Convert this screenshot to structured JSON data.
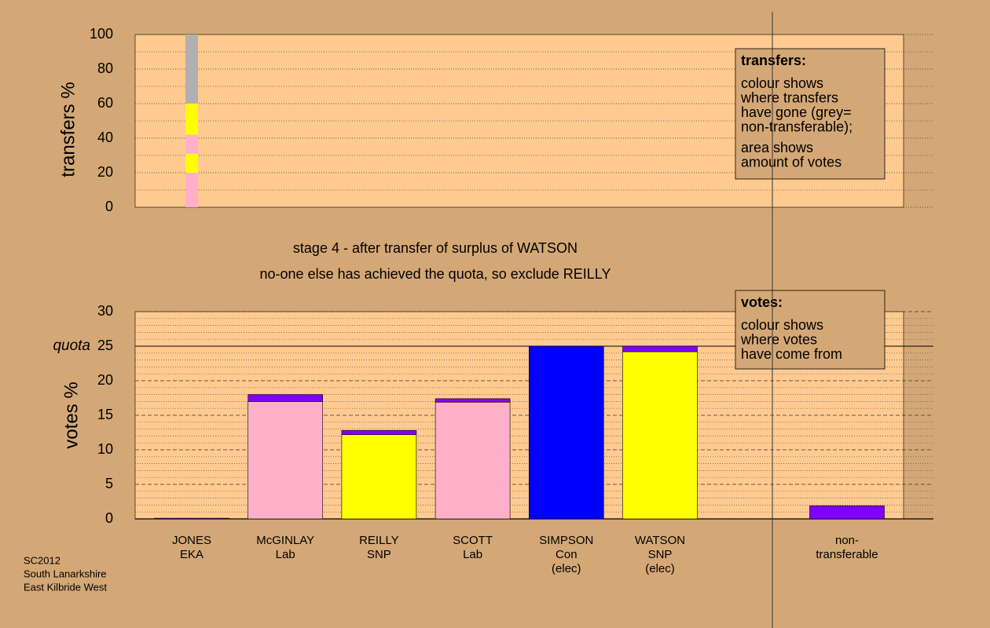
{
  "chart_data": [
    {
      "type": "bar",
      "stacked": true,
      "ylabel": "transfers %",
      "ylim": [
        0,
        100
      ],
      "yticks": [
        0,
        20,
        40,
        60,
        80,
        100
      ],
      "grid": true,
      "bars": [
        {
          "segments": [
            {
              "color": "#ffb0c8",
              "value": 20
            },
            {
              "color": "#ffff00",
              "value": 11
            },
            {
              "color": "#ffb0c8",
              "value": 11
            },
            {
              "color": "#ffff00",
              "value": 18
            },
            {
              "color": "#b0b0b0",
              "value": 40
            }
          ]
        },
        {
          "segments": []
        },
        {
          "segments": []
        },
        {
          "segments": []
        },
        {
          "segments": []
        },
        {
          "segments": []
        },
        {
          "segments": []
        }
      ],
      "legend": {
        "title": "transfers:",
        "paragraphs": [
          [
            "colour shows",
            "where transfers",
            "have gone (grey=",
            "non-transferable);"
          ],
          [
            "area shows",
            "amount of votes"
          ]
        ]
      }
    },
    {
      "type": "bar",
      "stacked": true,
      "annotations": [
        "stage 4 - after transfer of surplus of WATSON",
        "no-one else has achieved the quota, so exclude REILLY"
      ],
      "ylabel": "votes %",
      "ylim": [
        0,
        30
      ],
      "yticks": [
        0,
        5,
        10,
        15,
        20,
        25,
        30
      ],
      "grid": true,
      "quota": {
        "label": "quota",
        "value": 25
      },
      "categories": [
        [
          "JONES",
          "EKA"
        ],
        [
          "McGINLAY",
          "Lab"
        ],
        [
          "REILLY",
          "SNP"
        ],
        [
          "SCOTT",
          "Lab"
        ],
        [
          "SIMPSON",
          "Con",
          "(elec)"
        ],
        [
          "WATSON",
          "SNP",
          "(elec)"
        ],
        [
          "non-",
          "transferable"
        ]
      ],
      "bars": [
        {
          "segments": [
            {
              "color": "#8000ff",
              "value": 0.1
            }
          ]
        },
        {
          "segments": [
            {
              "color": "#ffb0c8",
              "value": 17
            },
            {
              "color": "#8000ff",
              "value": 1
            }
          ]
        },
        {
          "segments": [
            {
              "color": "#ffff00",
              "value": 12.2
            },
            {
              "color": "#8000ff",
              "value": 0.6
            }
          ]
        },
        {
          "segments": [
            {
              "color": "#ffb0c8",
              "value": 16.9
            },
            {
              "color": "#8000ff",
              "value": 0.5
            }
          ]
        },
        {
          "segments": [
            {
              "color": "#0000ff",
              "value": 25
            }
          ]
        },
        {
          "segments": [
            {
              "color": "#ffff00",
              "value": 24.2
            },
            {
              "color": "#8000ff",
              "value": 0.8
            }
          ]
        },
        {
          "segments": [
            {
              "color": "#8000ff",
              "value": 1.9
            }
          ]
        }
      ],
      "legend": {
        "title": "votes:",
        "paragraphs": [
          [
            "colour shows",
            "where votes",
            "have come from"
          ]
        ]
      }
    }
  ],
  "footer": [
    "SC2012",
    "South Lanarkshire",
    "East Kilbride West"
  ]
}
